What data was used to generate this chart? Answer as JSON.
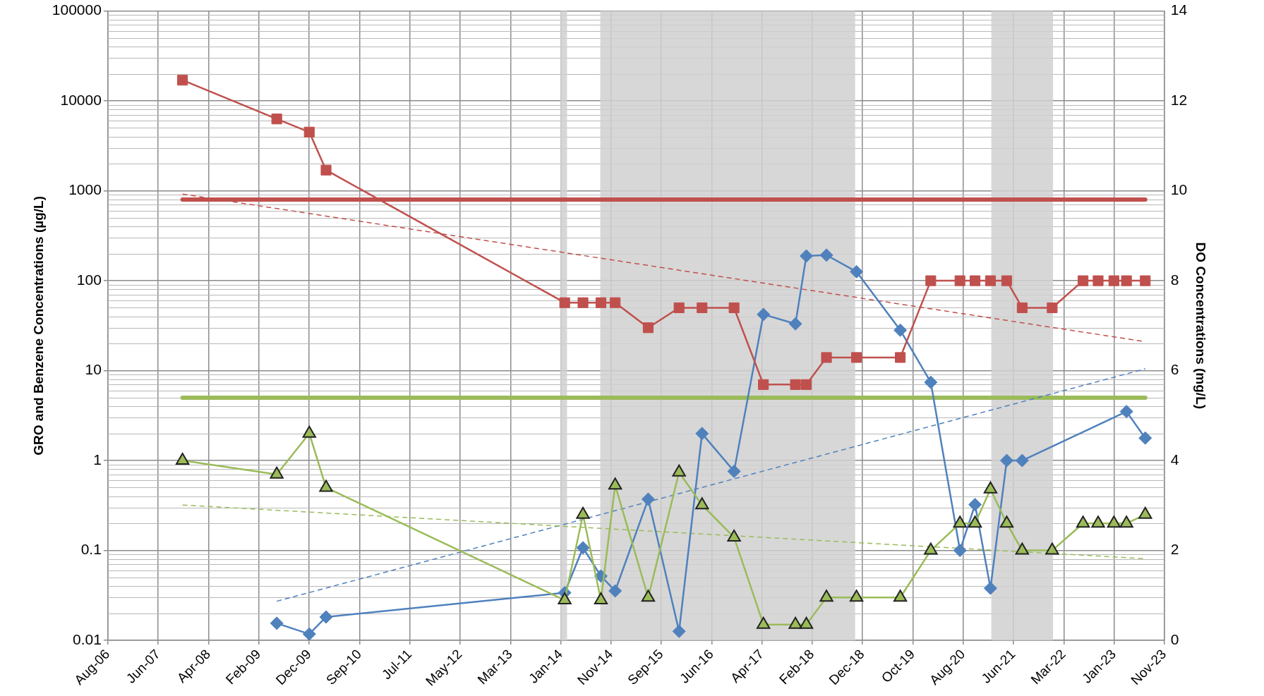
{
  "chart_data": {
    "type": "line",
    "ylabel": "GRO and Benzene Concentrations (µg/L)",
    "y2label": "DO Concentrations (mg/L)",
    "x": [
      "2007-11-08",
      "2009-05-23",
      "2009-12-03",
      "2010-03-13",
      "2014-02-03",
      "2014-05-23",
      "2014-09-07",
      "2014-12-01",
      "2015-06-16",
      "2015-12-17",
      "2016-05-02",
      "2016-11-09",
      "2017-05-03",
      "2017-11-10",
      "2018-01-14",
      "2018-05-14",
      "2018-11-09",
      "2019-07-28",
      "2020-01-26",
      "2020-07-18",
      "2020-10-16",
      "2021-01-16",
      "2021-04-23",
      "2021-07-24",
      "2022-01-19",
      "2022-07-22",
      "2022-10-20",
      "2023-01-22",
      "2023-04-07",
      "2023-07-28"
    ],
    "series": [
      {
        "type": "line",
        "color": "#c0504d",
        "marker": "square",
        "values": [
          17000,
          6300,
          4500,
          1700,
          57,
          57,
          57,
          57,
          30,
          50,
          50,
          50,
          7,
          7,
          7,
          14,
          14,
          14,
          100,
          100,
          100,
          100,
          100,
          50,
          50,
          100,
          100,
          100,
          100,
          100
        ]
      },
      {
        "type": "line",
        "color": "#9bbb59",
        "marker": "triangle",
        "values": [
          1,
          0.7,
          2,
          0.5,
          0.028,
          0.25,
          0.028,
          0.53,
          0.03,
          0.74,
          0.32,
          0.14,
          0.015,
          0.015,
          0.015,
          0.03,
          0.03,
          0.03,
          0.1,
          0.2,
          0.2,
          0.48,
          0.2,
          0.1,
          0.1,
          0.2,
          0.2,
          0.2,
          0.2,
          0.25
        ]
      },
      {
        "type": "line",
        "color": "#4f81bd",
        "marker": "diamond",
        "axis": "y2",
        "x": [
          "2009-05-23",
          "2009-12-03",
          "2010-03-13",
          "2014-02-03",
          "2014-05-23",
          "2014-09-07",
          "2014-12-01",
          "2015-06-16",
          "2015-12-17",
          "2016-05-02",
          "2016-11-09",
          "2017-05-03",
          "2017-11-10",
          "2018-01-14",
          "2018-05-14",
          "2018-11-09",
          "2019-07-28",
          "2020-01-26",
          "2020-07-18",
          "2020-10-16",
          "2021-01-16",
          "2021-04-23",
          "2021-07-24",
          "2023-04-07",
          "2023-07-28"
        ],
        "values": [
          0.38,
          0.14,
          0.52,
          1.06,
          2.06,
          1.43,
          1.1,
          3.14,
          0.2,
          4.6,
          3.76,
          7.25,
          7.04,
          8.55,
          8.57,
          8.2,
          6.9,
          5.74,
          2.0,
          3.02,
          1.16,
          4.0,
          4.0,
          5.09,
          4.5
        ]
      },
      {
        "type": "line",
        "color": "#c0504d",
        "marker": "none",
        "line_style": "dashed",
        "x": [
          "2007-11-08",
          "2023-07-28"
        ],
        "values": [
          920,
          21
        ]
      },
      {
        "type": "line",
        "color": "#9bbb59",
        "marker": "none",
        "line_style": "dashed",
        "x": [
          "2007-11-08",
          "2023-07-28"
        ],
        "values": [
          0.32,
          0.081
        ]
      },
      {
        "type": "line",
        "color": "#4f81bd",
        "marker": "none",
        "line_style": "dashed",
        "axis": "y2",
        "x": [
          "2009-05-23",
          "2023-07-28"
        ],
        "values": [
          0.87,
          6.04
        ]
      }
    ],
    "ref_lines": [
      {
        "axis": "y",
        "value": 800,
        "color": "#c0504d"
      },
      {
        "axis": "y",
        "value": 5,
        "color": "#9bbb59"
      }
    ],
    "bands": [
      {
        "axis": "x",
        "from": "2014-01-08",
        "to": "2014-02-17",
        "color": "#d0d0d0"
      },
      {
        "axis": "x",
        "from": "2014-09-03",
        "to": "2018-11-01",
        "color": "#d0d0d0"
      },
      {
        "axis": "x",
        "from": "2021-01-21",
        "to": "2022-01-24",
        "color": "#d0d0d0"
      }
    ],
    "log": "y",
    "ylim": [
      0.01,
      100000
    ],
    "yticks": [
      0.01,
      0.1,
      1,
      10,
      100,
      1000,
      10000,
      100000
    ],
    "y2lim": [
      0,
      14
    ],
    "y2ticks": [
      0,
      2,
      4,
      6,
      8,
      10,
      12,
      14
    ],
    "xlim": [
      "2006-08-20",
      "2023-11-19"
    ],
    "xticks": [
      {
        "value": "2006-08-20",
        "label": "Aug-06"
      },
      {
        "value": "2007-06-16",
        "label": "Jun-07"
      },
      {
        "value": "2008-04-11",
        "label": "Apr-08"
      },
      {
        "value": "2009-02-05",
        "label": "Feb-09"
      },
      {
        "value": "2009-12-03",
        "label": "Dec-09"
      },
      {
        "value": "2010-09-29",
        "label": "Sep-10"
      },
      {
        "value": "2011-07-26",
        "label": "Jul-11"
      },
      {
        "value": "2012-05-21",
        "label": "May-12"
      },
      {
        "value": "2013-03-17",
        "label": "Mar-13"
      },
      {
        "value": "2014-01-10",
        "label": "Jan-14"
      },
      {
        "value": "2014-11-06",
        "label": "Nov-14"
      },
      {
        "value": "2015-09-02",
        "label": "Sep-15"
      },
      {
        "value": "2016-06-28",
        "label": "Jun-16"
      },
      {
        "value": "2017-04-24",
        "label": "Apr-17"
      },
      {
        "value": "2018-02-18",
        "label": "Feb-18"
      },
      {
        "value": "2018-12-15",
        "label": "Dec-18"
      },
      {
        "value": "2019-10-11",
        "label": "Oct-19"
      },
      {
        "value": "2020-08-06",
        "label": "Aug-20"
      },
      {
        "value": "2021-06-02",
        "label": "Jun-21"
      },
      {
        "value": "2022-03-29",
        "label": "Mar-22"
      },
      {
        "value": "2023-01-23",
        "label": "Jan-23"
      },
      {
        "value": "2023-11-19",
        "label": "Nov-23"
      }
    ],
    "grid": true,
    "legend": false
  }
}
